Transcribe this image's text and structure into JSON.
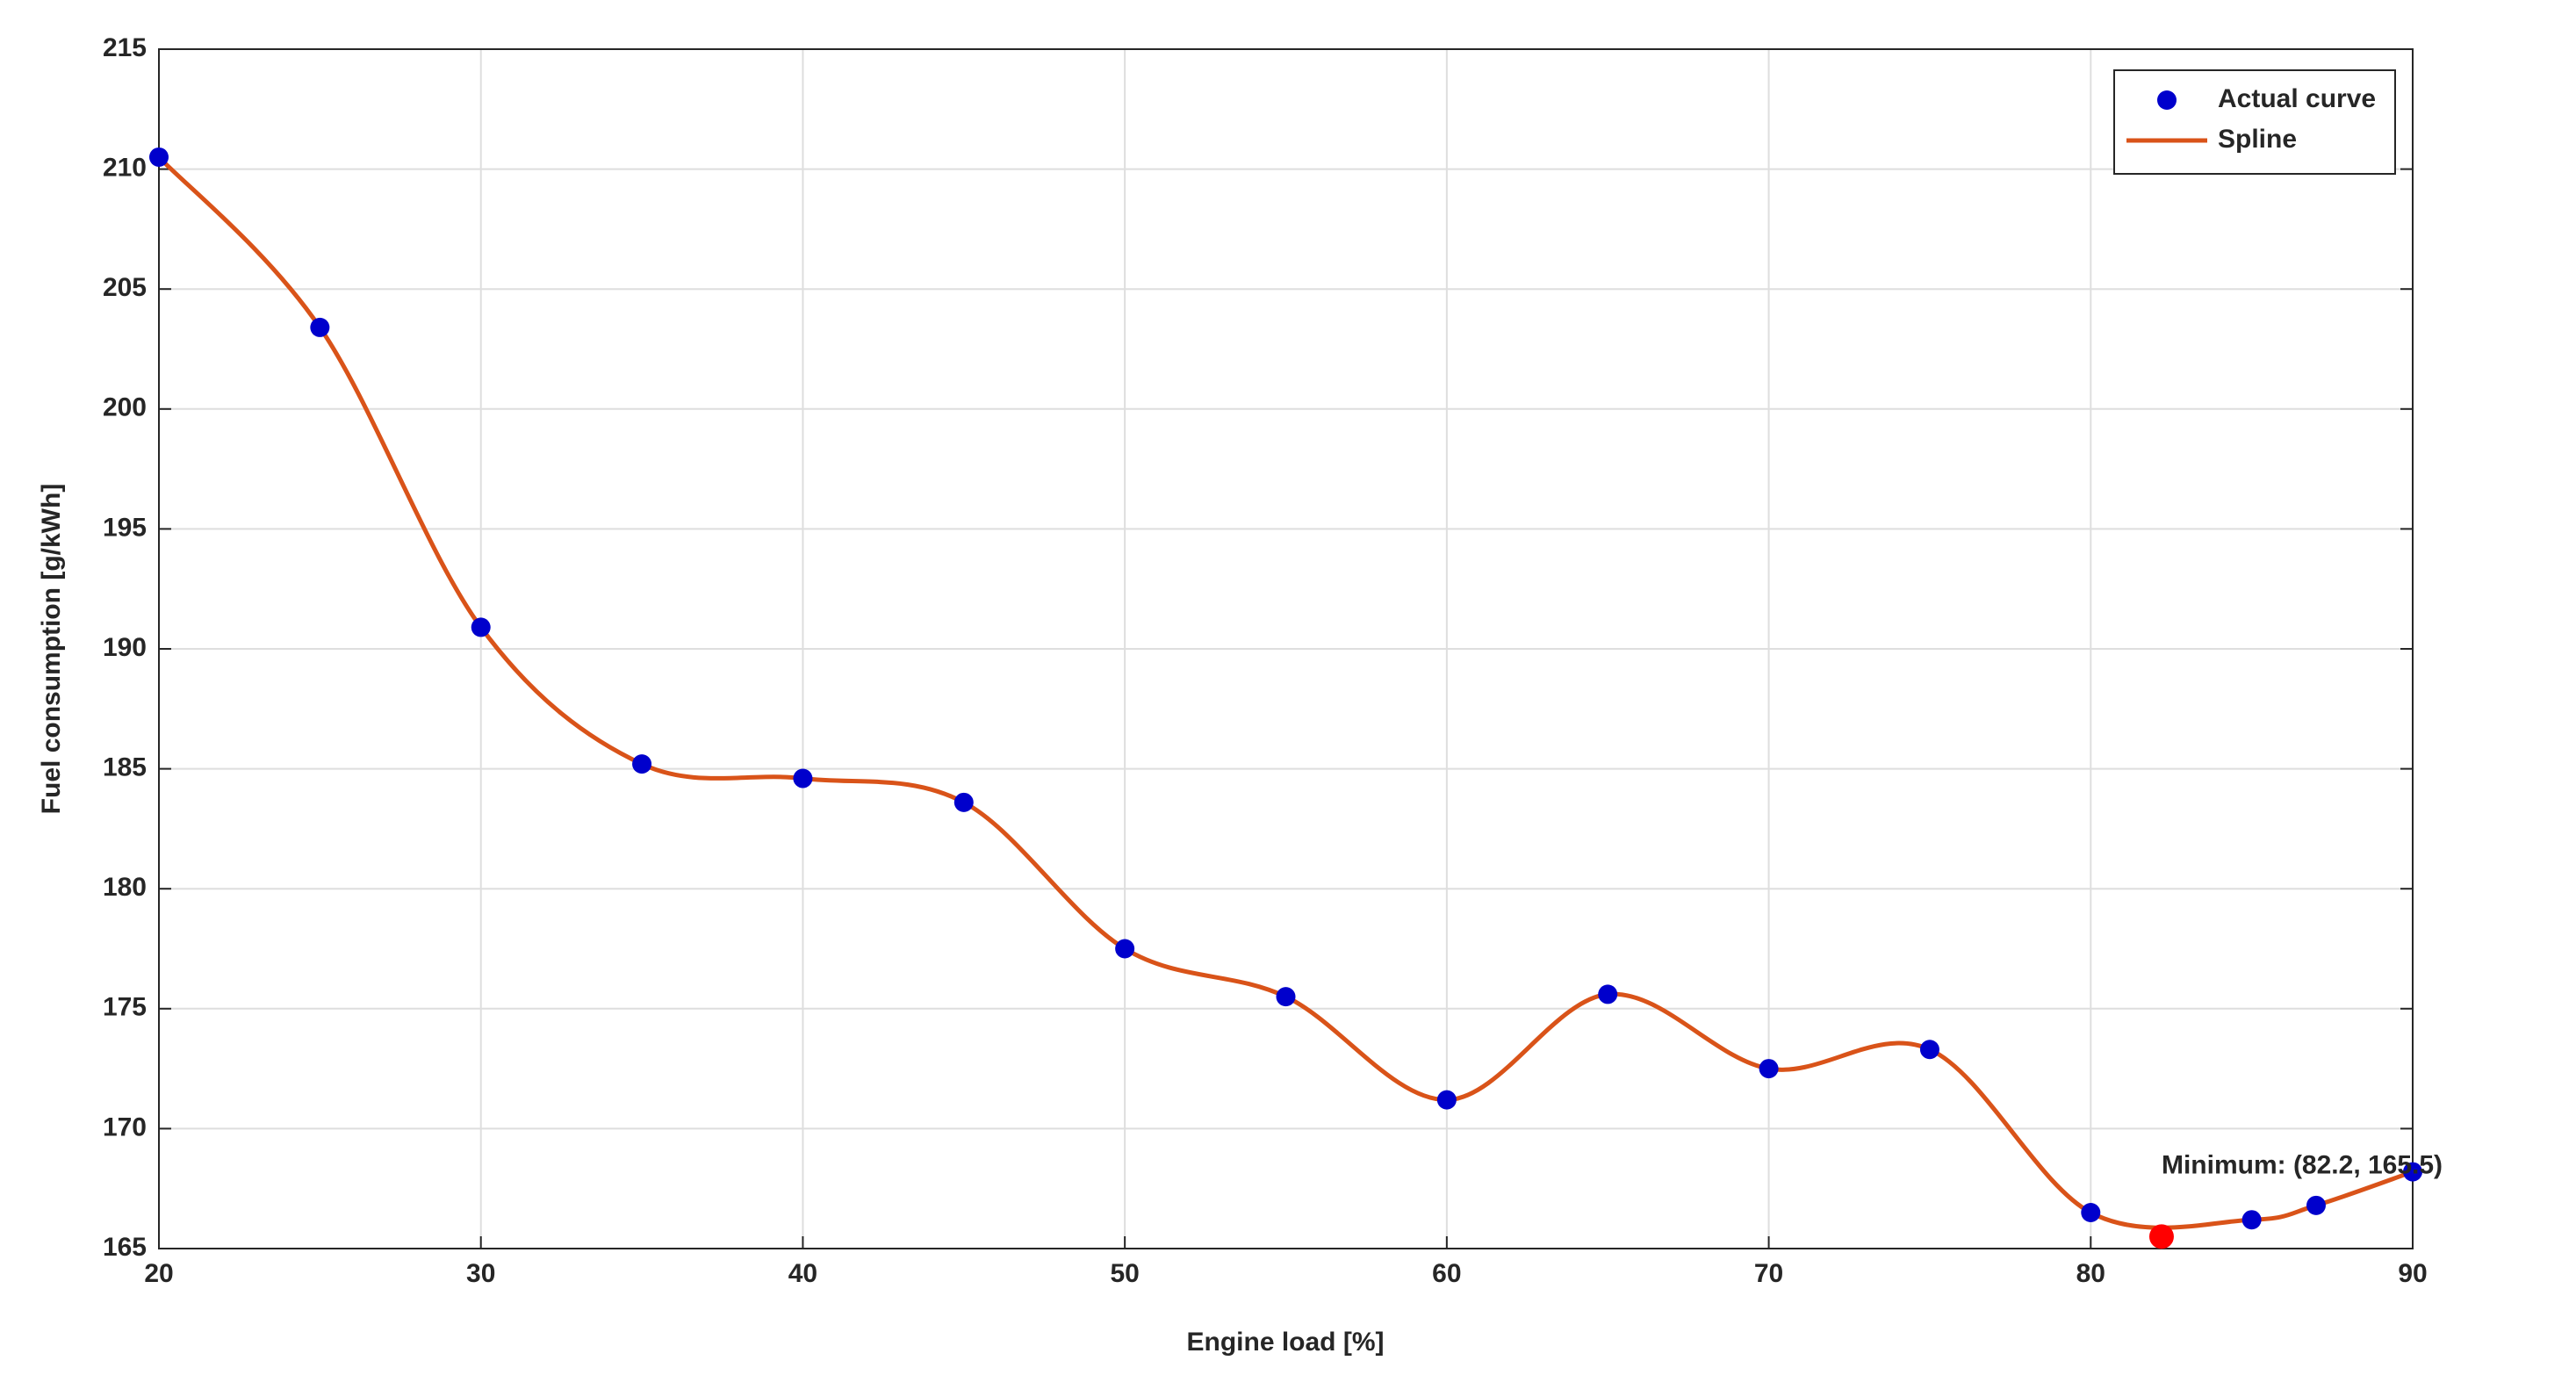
{
  "chart_data": {
    "type": "line",
    "xlabel": "Engine load [%]",
    "ylabel": "Fuel consumption [g/kWh]",
    "x": [
      20,
      25,
      30,
      35,
      40,
      45,
      50,
      55,
      60,
      65,
      70,
      75,
      80,
      85,
      87,
      90
    ],
    "series": [
      {
        "name": "Actual curve",
        "color": "#0000cc",
        "mode": "markers",
        "values": [
          210.5,
          203.4,
          190.9,
          185.2,
          184.6,
          183.6,
          177.5,
          175.5,
          171.2,
          175.6,
          172.5,
          173.3,
          166.5,
          166.2,
          166.8,
          168.2
        ]
      },
      {
        "name": "Spline",
        "color": "#d95319",
        "mode": "smooth-line",
        "values": [
          210.5,
          203.4,
          190.9,
          185.2,
          184.6,
          183.6,
          177.5,
          175.5,
          171.2,
          175.6,
          172.5,
          173.3,
          166.5,
          166.2,
          166.8,
          168.2
        ]
      }
    ],
    "annotation": {
      "text": "Minimum: (82.2, 165.5)",
      "x": 82.2,
      "y": 165.5,
      "color": "#ff0000"
    },
    "xlim": [
      20,
      90
    ],
    "xticks": [
      20,
      30,
      40,
      50,
      60,
      70,
      80,
      90
    ],
    "ylim": [
      165,
      215
    ],
    "yticks": [
      165,
      170,
      175,
      180,
      185,
      190,
      195,
      200,
      205,
      210,
      215
    ],
    "grid": true,
    "legend": "top-right"
  }
}
